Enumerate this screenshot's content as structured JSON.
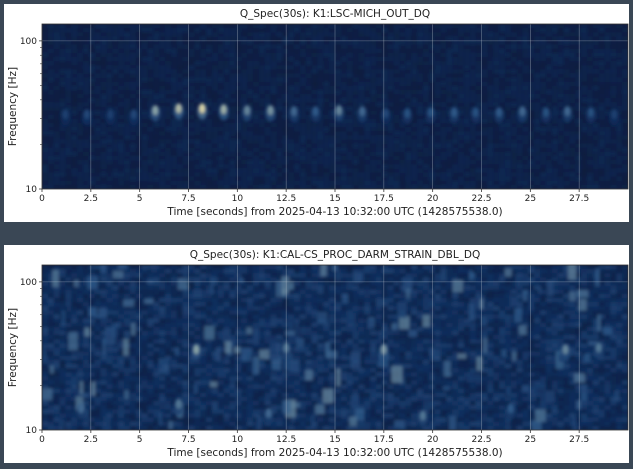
{
  "chart_data": [
    {
      "type": "heatmap",
      "title": "Q_Spec(30s): K1:LSC-MICH_OUT_DQ",
      "xlabel": "Time [seconds] from 2025-04-13 10:32:00 UTC (1428575538.0)",
      "ylabel": "Frequency [Hz]",
      "xlim": [
        0,
        30
      ],
      "ylim": [
        10,
        130
      ],
      "yscale": "log",
      "xticks": [
        0,
        2.5,
        5,
        7.5,
        10,
        12.5,
        15,
        17.5,
        20,
        22.5,
        25,
        27.5
      ],
      "xtick_labels": [
        "0",
        "2.5",
        "5",
        "7.5",
        "10",
        "12.5",
        "15",
        "17.5",
        "20",
        "22.5",
        "25",
        "27.5"
      ],
      "yticks": [
        10,
        100
      ],
      "ytick_labels": [
        "10",
        "100"
      ],
      "grid": true,
      "colormap": [
        "#0c1a3c",
        "#123060",
        "#2e5a8a",
        "#8ea6a8",
        "#f2e2a8"
      ],
      "features": [
        {
          "time": 1.2,
          "freq": 32,
          "intensity": 0.35
        },
        {
          "time": 2.3,
          "freq": 32,
          "intensity": 0.4
        },
        {
          "time": 3.5,
          "freq": 32,
          "intensity": 0.35
        },
        {
          "time": 4.7,
          "freq": 32,
          "intensity": 0.4
        },
        {
          "time": 5.8,
          "freq": 34,
          "intensity": 0.75
        },
        {
          "time": 7.0,
          "freq": 35,
          "intensity": 0.85
        },
        {
          "time": 8.2,
          "freq": 35,
          "intensity": 0.95
        },
        {
          "time": 9.3,
          "freq": 34.5,
          "intensity": 0.8
        },
        {
          "time": 10.5,
          "freq": 34,
          "intensity": 0.65
        },
        {
          "time": 11.7,
          "freq": 34,
          "intensity": 0.7
        },
        {
          "time": 12.9,
          "freq": 33.5,
          "intensity": 0.55
        },
        {
          "time": 14.0,
          "freq": 33.5,
          "intensity": 0.5
        },
        {
          "time": 15.2,
          "freq": 34,
          "intensity": 0.65
        },
        {
          "time": 16.4,
          "freq": 33.5,
          "intensity": 0.55
        },
        {
          "time": 17.6,
          "freq": 32.5,
          "intensity": 0.4
        },
        {
          "time": 18.7,
          "freq": 32.5,
          "intensity": 0.45
        },
        {
          "time": 19.9,
          "freq": 33,
          "intensity": 0.45
        },
        {
          "time": 21.1,
          "freq": 33,
          "intensity": 0.5
        },
        {
          "time": 22.2,
          "freq": 33,
          "intensity": 0.45
        },
        {
          "time": 23.4,
          "freq": 33,
          "intensity": 0.5
        },
        {
          "time": 24.6,
          "freq": 33.5,
          "intensity": 0.55
        },
        {
          "time": 25.8,
          "freq": 33,
          "intensity": 0.45
        },
        {
          "time": 26.9,
          "freq": 33.5,
          "intensity": 0.55
        },
        {
          "time": 28.1,
          "freq": 33,
          "intensity": 0.45
        },
        {
          "time": 29.3,
          "freq": 32,
          "intensity": 0.35
        }
      ]
    },
    {
      "type": "heatmap",
      "title": "Q_Spec(30s): K1:CAL-CS_PROC_DARM_STRAIN_DBL_DQ",
      "xlabel": "Time [seconds] from 2025-04-13 10:32:00 UTC (1428575538.0)",
      "ylabel": "Frequency [Hz]",
      "xlim": [
        0,
        30
      ],
      "ylim": [
        10,
        130
      ],
      "yscale": "log",
      "xticks": [
        0,
        2.5,
        5,
        7.5,
        10,
        12.5,
        15,
        17.5,
        20,
        22.5,
        25,
        27.5
      ],
      "xtick_labels": [
        "0",
        "2.5",
        "5",
        "7.5",
        "10",
        "12.5",
        "15",
        "17.5",
        "20",
        "22.5",
        "25",
        "27.5"
      ],
      "yticks": [
        10,
        100
      ],
      "ytick_labels": [
        "10",
        "100"
      ],
      "grid": true,
      "colormap": [
        "#0c1a3c",
        "#123060",
        "#2e5a8a",
        "#8ea6a8",
        "#f2e2a8"
      ],
      "features": [
        {
          "time": 2.0,
          "freq": 14,
          "intensity": 0.55
        },
        {
          "time": 7.0,
          "freq": 15,
          "intensity": 0.6
        },
        {
          "time": 7.9,
          "freq": 35,
          "intensity": 0.75
        },
        {
          "time": 11.6,
          "freq": 13,
          "intensity": 0.55
        },
        {
          "time": 12.5,
          "freq": 36,
          "intensity": 0.6
        },
        {
          "time": 17.5,
          "freq": 35,
          "intensity": 0.7
        },
        {
          "time": 19.5,
          "freq": 12.5,
          "intensity": 0.6
        },
        {
          "time": 24.0,
          "freq": 14,
          "intensity": 0.5
        },
        {
          "time": 26.8,
          "freq": 35,
          "intensity": 0.65
        },
        {
          "time": 28.5,
          "freq": 36,
          "intensity": 0.6
        }
      ]
    }
  ]
}
